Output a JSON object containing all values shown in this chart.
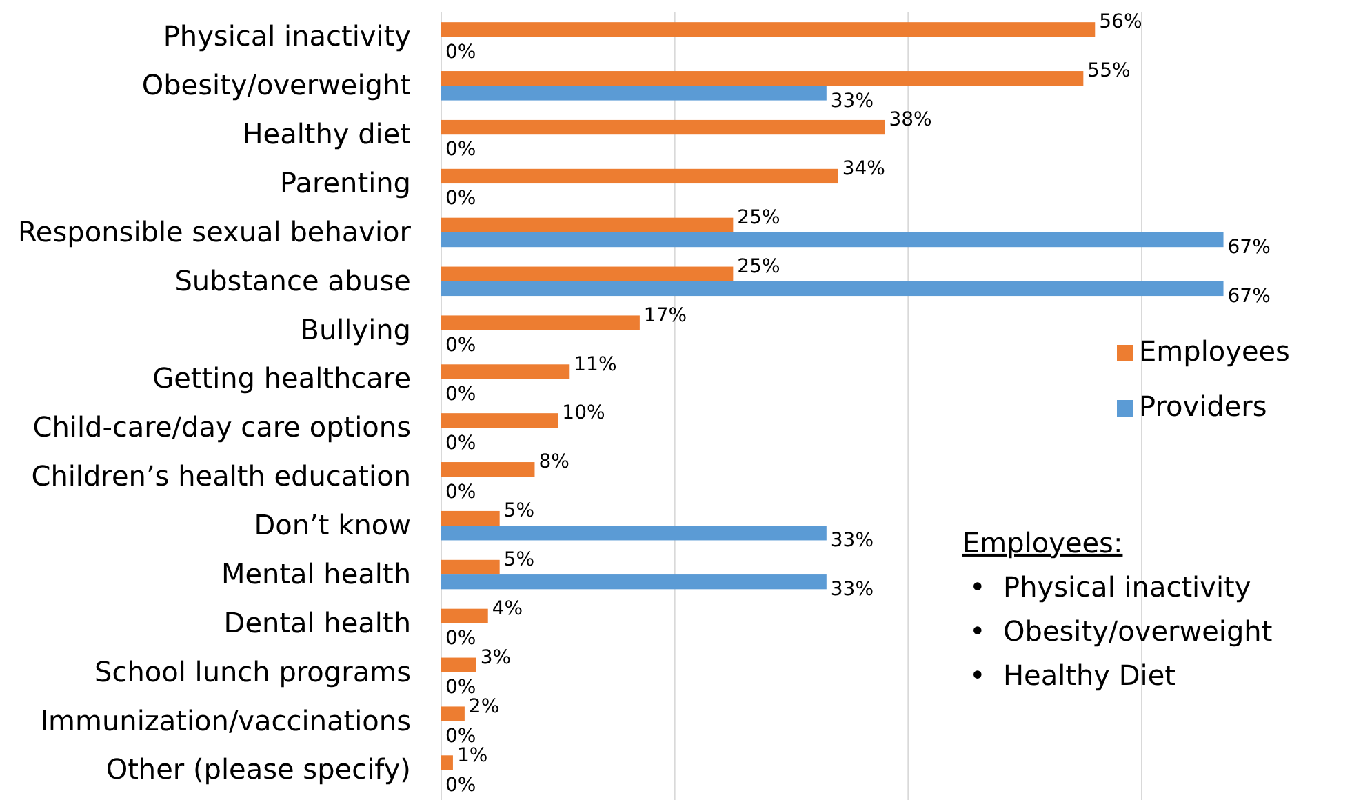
{
  "chart_data": {
    "type": "bar",
    "orientation": "horizontal",
    "categories": [
      "Physical inactivity",
      "Obesity/overweight",
      "Healthy diet",
      "Parenting",
      "Responsible sexual behavior",
      "Substance abuse",
      "Bullying",
      "Getting healthcare",
      "Child-care/day care options",
      "Children’s health education",
      "Don’t know",
      "Mental health",
      "Dental health",
      "School lunch programs",
      "Immunization/vaccinations",
      "Other (please specify)"
    ],
    "series": [
      {
        "name": "Employees",
        "color": "#ed7d31",
        "values": [
          56,
          55,
          38,
          34,
          25,
          25,
          17,
          11,
          10,
          8,
          5,
          5,
          4,
          3,
          2,
          1
        ],
        "value_labels": [
          "56%",
          "55%",
          "38%",
          "34%",
          "25%",
          "25%",
          "17%",
          "11%",
          "10%",
          "8%",
          "5%",
          "5%",
          "4%",
          "3%",
          "2%",
          "1%"
        ]
      },
      {
        "name": "Providers",
        "color": "#5b9bd5",
        "values": [
          0,
          33,
          0,
          0,
          67,
          67,
          0,
          0,
          0,
          0,
          33,
          33,
          0,
          0,
          0,
          0
        ],
        "value_labels": [
          "0%",
          "33%",
          "0%",
          "0%",
          "67%",
          "67%",
          "0%",
          "0%",
          "0%",
          "0%",
          "33%",
          "33%",
          "0%",
          "0%",
          "0%",
          "0%"
        ]
      }
    ],
    "xticks": [
      {
        "value": 0,
        "label": null
      },
      {
        "value": 20,
        "label": null
      },
      {
        "value": 40,
        "label": null
      },
      {
        "value": 60,
        "label": null
      }
    ],
    "tick_labels": "y",
    "grid": "x",
    "legend": "right",
    "annotations": [
      "Employees:",
      "•  Physical inactivity",
      "•  Obesity/overweight",
      "•  Healthy Diet"
    ]
  }
}
